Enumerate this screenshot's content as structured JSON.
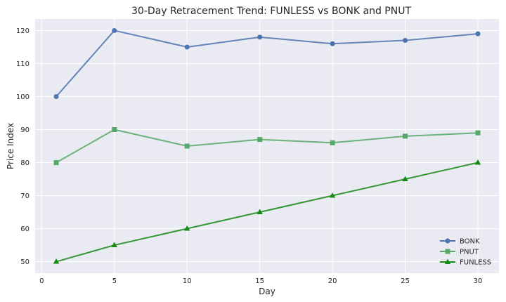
{
  "chart_data": {
    "type": "line",
    "title": "30-Day Retracement Trend: FUNLESS vs BONK and PNUT",
    "xlabel": "Day",
    "ylabel": "Price Index",
    "x": [
      1,
      5,
      10,
      15,
      20,
      25,
      30
    ],
    "xlim": [
      -0.45,
      31.45
    ],
    "ylim": [
      46.5,
      123.5
    ],
    "xticks": [
      0,
      5,
      10,
      15,
      20,
      25,
      30
    ],
    "yticks": [
      50,
      60,
      70,
      80,
      90,
      100,
      110,
      120
    ],
    "grid": true,
    "legend_position": "bottom-right",
    "series": [
      {
        "name": "BONK",
        "values": [
          100,
          120,
          115,
          118,
          116,
          117,
          119
        ],
        "color": "#4c72b0",
        "marker": "circle"
      },
      {
        "name": "PNUT",
        "values": [
          80,
          90,
          85,
          87,
          86,
          88,
          89
        ],
        "color": "#55a868",
        "marker": "square"
      },
      {
        "name": "FUNLESS",
        "values": [
          50,
          55,
          60,
          65,
          70,
          75,
          80
        ],
        "color": "#138a13",
        "marker": "triangle"
      }
    ]
  }
}
